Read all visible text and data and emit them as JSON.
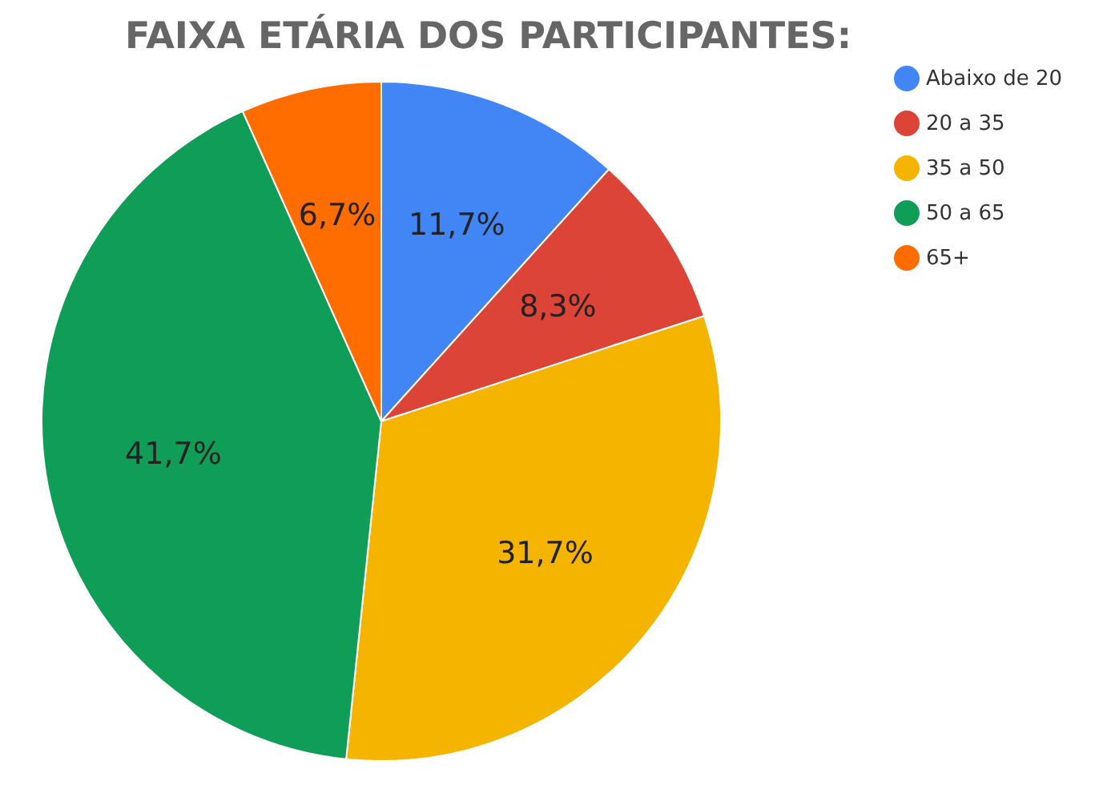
{
  "chart_data": {
    "type": "pie",
    "title": "FAIXA ETÁRIA DOS PARTICIPANTES:",
    "categories": [
      "Abaixo de 20",
      "20 a 35",
      "35 a 50",
      "50 a 65",
      "65+"
    ],
    "values": [
      11.7,
      8.3,
      31.7,
      41.7,
      6.7
    ],
    "value_labels": [
      "11,7%",
      "8,3%",
      "31,7%",
      "41,7%",
      "6,7%"
    ],
    "colors": [
      "#4285f4",
      "#db4437",
      "#f4b400",
      "#0f9d58",
      "#ff6d01"
    ],
    "legend": "top right"
  }
}
